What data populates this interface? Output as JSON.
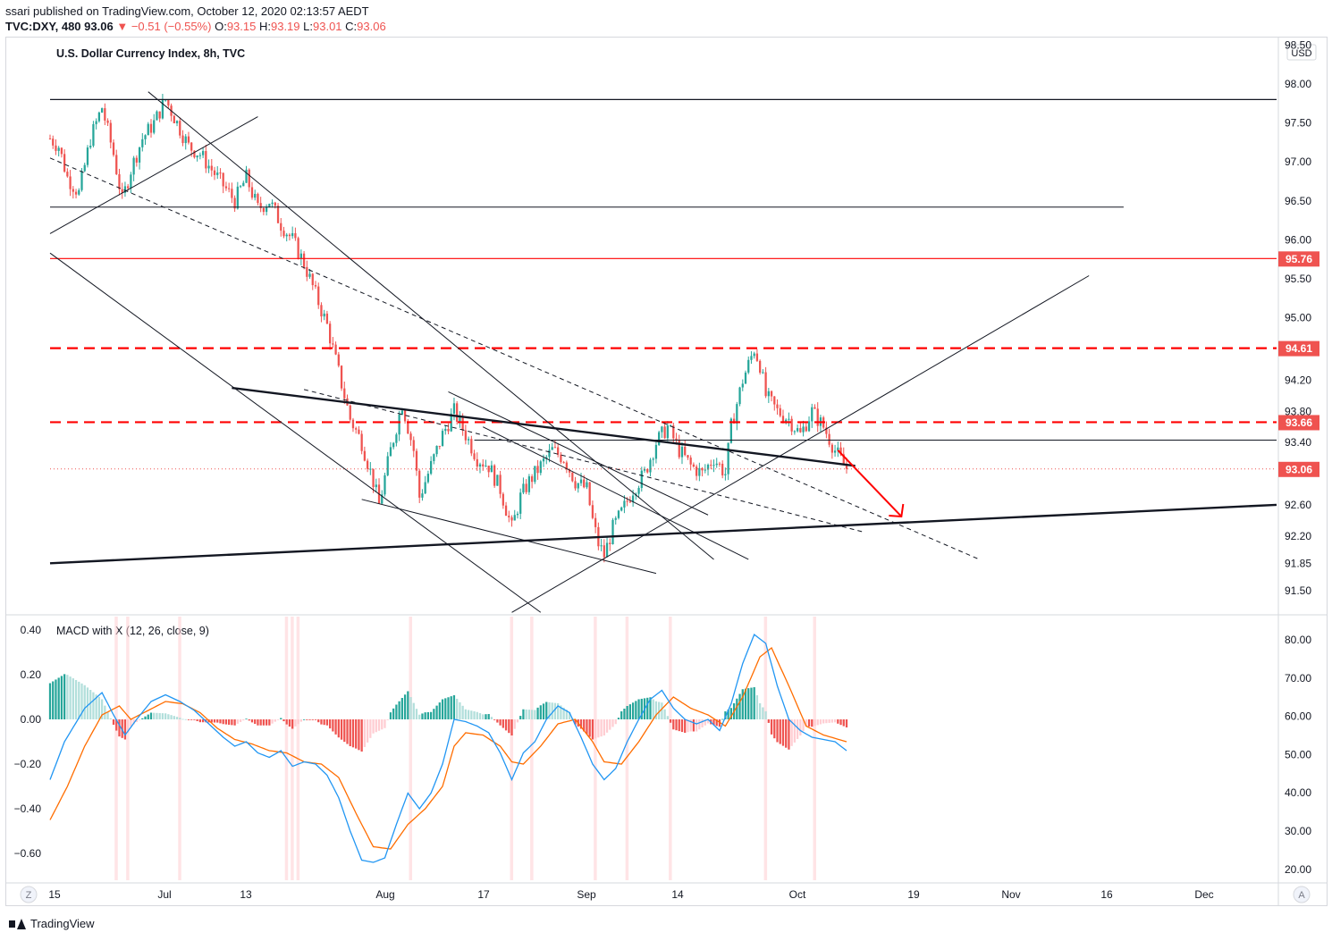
{
  "header": {
    "published": "ssari published on TradingView.com, October 12, 2020 02:13:57 AEDT",
    "symbol": "TVC:DXY, 480",
    "last": "93.06",
    "change": "▼ −0.51 (−0.55%)",
    "o_label": "O:",
    "o_val": "93.15",
    "h_label": "H:",
    "h_val": "93.19",
    "l_label": "L:",
    "l_val": "93.01",
    "c_label": "C:",
    "c_val": "93.06"
  },
  "footer": {
    "brand": "TradingView"
  },
  "colors": {
    "up": "#26a69a",
    "down": "#ef5350",
    "red": "#ff0000",
    "macd": "#2196f3",
    "signal": "#ff6d00"
  },
  "icons": {
    "zoom": "Z",
    "auto": "A"
  },
  "chart_data": [
    {
      "type": "candlestick",
      "title": "U.S. Dollar Currency Index, 8h, TVC",
      "currency": "USD",
      "ylim": [
        91.2,
        98.55
      ],
      "y_ticks": [
        "98.50",
        "98.00",
        "97.50",
        "97.00",
        "96.50",
        "96.00",
        "95.50",
        "95.00",
        "94.20",
        "93.80",
        "93.40",
        "92.60",
        "92.20",
        "91.85",
        "91.50"
      ],
      "x_ticks": [
        "15",
        "Jul",
        "13",
        "Aug",
        "17",
        "Sep",
        "14",
        "Oct",
        "19",
        "Nov",
        "16",
        "Dec"
      ],
      "price_labels": [
        "95.76",
        "94.61",
        "93.66",
        "93.06"
      ],
      "levels": [
        {
          "price": 97.8,
          "style": "solid"
        },
        {
          "price": 96.42,
          "style": "solid"
        },
        {
          "price": 95.76,
          "style": "red solid"
        },
        {
          "price": 94.61,
          "style": "red dashed"
        },
        {
          "price": 93.66,
          "style": "red dashed"
        },
        {
          "price": 93.43,
          "style": "solid"
        },
        {
          "price": 93.06,
          "style": "red dotted"
        }
      ],
      "path": [
        [
          0,
          97.3
        ],
        [
          3,
          97.2
        ],
        [
          6,
          96.8
        ],
        [
          10,
          96.6
        ],
        [
          14,
          97.3
        ],
        [
          18,
          97.7
        ],
        [
          22,
          97.1
        ],
        [
          25,
          96.5
        ],
        [
          28,
          96.9
        ],
        [
          32,
          97.3
        ],
        [
          36,
          97.5
        ],
        [
          40,
          97.8
        ],
        [
          44,
          97.5
        ],
        [
          48,
          97.2
        ],
        [
          52,
          97.1
        ],
        [
          56,
          96.9
        ],
        [
          60,
          96.7
        ],
        [
          64,
          96.5
        ],
        [
          68,
          96.8
        ],
        [
          72,
          96.4
        ],
        [
          76,
          96.5
        ],
        [
          80,
          96.2
        ],
        [
          84,
          96.0
        ],
        [
          88,
          95.7
        ],
        [
          92,
          95.3
        ],
        [
          96,
          94.9
        ],
        [
          100,
          94.3
        ],
        [
          104,
          93.7
        ],
        [
          108,
          93.4
        ],
        [
          112,
          92.9
        ],
        [
          114,
          92.6
        ],
        [
          118,
          93.3
        ],
        [
          122,
          93.9
        ],
        [
          126,
          93.3
        ],
        [
          128,
          92.7
        ],
        [
          132,
          93.1
        ],
        [
          136,
          93.5
        ],
        [
          140,
          93.8
        ],
        [
          144,
          93.5
        ],
        [
          148,
          93.2
        ],
        [
          152,
          93.1
        ],
        [
          156,
          92.8
        ],
        [
          160,
          92.3
        ],
        [
          163,
          92.7
        ],
        [
          166,
          92.9
        ],
        [
          170,
          93.1
        ],
        [
          174,
          93.3
        ],
        [
          178,
          93.2
        ],
        [
          182,
          92.9
        ],
        [
          186,
          92.8
        ],
        [
          188,
          92.4
        ],
        [
          190,
          92.1
        ],
        [
          192,
          91.95
        ],
        [
          195,
          92.3
        ],
        [
          198,
          92.5
        ],
        [
          202,
          92.8
        ],
        [
          206,
          93.0
        ],
        [
          210,
          93.4
        ],
        [
          214,
          93.6
        ],
        [
          218,
          93.3
        ],
        [
          222,
          93.1
        ],
        [
          226,
          93.0
        ],
        [
          230,
          93.2
        ],
        [
          234,
          93.0
        ],
        [
          236,
          93.6
        ],
        [
          238,
          93.9
        ],
        [
          240,
          94.2
        ],
        [
          242,
          94.4
        ],
        [
          244,
          94.6
        ],
        [
          246,
          94.4
        ],
        [
          248,
          94.0
        ],
        [
          252,
          93.8
        ],
        [
          256,
          93.7
        ],
        [
          260,
          93.5
        ],
        [
          264,
          93.8
        ],
        [
          268,
          93.6
        ],
        [
          272,
          93.3
        ],
        [
          276,
          93.06
        ]
      ],
      "trendlines": [
        {
          "name": "support-bottom",
          "from": [
            0,
            91.85
          ],
          "to": [
            425,
            92.6
          ],
          "style": "thick"
        },
        {
          "name": "wedge-top",
          "from": [
            63,
            94.1
          ],
          "to": [
            279,
            93.1
          ],
          "style": "thick"
        }
      ],
      "annotation": "red arrow pointing down to 92.45"
    },
    {
      "type": "line",
      "title": "MACD with X (12, 26, close, 9)",
      "ylim": [
        -0.72,
        0.46
      ],
      "y_ticks": [
        "0.40",
        "0.20",
        "0.00",
        "−0.20",
        "−0.40",
        "−0.60"
      ],
      "right_ticks": [
        "80.00",
        "70.00",
        "60.00",
        "50.00",
        "40.00",
        "30.00",
        "20.00"
      ],
      "macd": [
        [
          0,
          -0.27
        ],
        [
          5,
          -0.1
        ],
        [
          12,
          0.05
        ],
        [
          18,
          0.12
        ],
        [
          22,
          0.02
        ],
        [
          26,
          -0.07
        ],
        [
          30,
          0.0
        ],
        [
          35,
          0.08
        ],
        [
          40,
          0.11
        ],
        [
          45,
          0.08
        ],
        [
          50,
          0.04
        ],
        [
          55,
          -0.02
        ],
        [
          60,
          -0.08
        ],
        [
          64,
          -0.12
        ],
        [
          68,
          -0.1
        ],
        [
          72,
          -0.15
        ],
        [
          76,
          -0.17
        ],
        [
          80,
          -0.14
        ],
        [
          84,
          -0.21
        ],
        [
          88,
          -0.19
        ],
        [
          92,
          -0.2
        ],
        [
          96,
          -0.25
        ],
        [
          100,
          -0.35
        ],
        [
          104,
          -0.5
        ],
        [
          108,
          -0.63
        ],
        [
          112,
          -0.64
        ],
        [
          116,
          -0.62
        ],
        [
          120,
          -0.47
        ],
        [
          124,
          -0.33
        ],
        [
          128,
          -0.4
        ],
        [
          132,
          -0.33
        ],
        [
          136,
          -0.2
        ],
        [
          140,
          0.0
        ],
        [
          144,
          -0.01
        ],
        [
          148,
          -0.03
        ],
        [
          152,
          -0.06
        ],
        [
          156,
          -0.15
        ],
        [
          160,
          -0.27
        ],
        [
          164,
          -0.15
        ],
        [
          168,
          -0.1
        ],
        [
          172,
          0.0
        ],
        [
          176,
          0.06
        ],
        [
          180,
          0.03
        ],
        [
          184,
          -0.08
        ],
        [
          188,
          -0.2
        ],
        [
          192,
          -0.27
        ],
        [
          196,
          -0.22
        ],
        [
          200,
          -0.1
        ],
        [
          204,
          0.0
        ],
        [
          208,
          0.09
        ],
        [
          212,
          0.13
        ],
        [
          216,
          0.05
        ],
        [
          220,
          0.0
        ],
        [
          224,
          -0.02
        ],
        [
          228,
          0.0
        ],
        [
          232,
          -0.05
        ],
        [
          236,
          0.07
        ],
        [
          240,
          0.25
        ],
        [
          244,
          0.38
        ],
        [
          248,
          0.34
        ],
        [
          252,
          0.15
        ],
        [
          256,
          0.0
        ],
        [
          260,
          -0.05
        ],
        [
          264,
          -0.08
        ],
        [
          268,
          -0.09
        ],
        [
          272,
          -0.1
        ],
        [
          276,
          -0.14
        ]
      ],
      "signal": [
        [
          0,
          -0.45
        ],
        [
          6,
          -0.3
        ],
        [
          12,
          -0.12
        ],
        [
          18,
          0.02
        ],
        [
          24,
          0.06
        ],
        [
          28,
          0.0
        ],
        [
          34,
          0.04
        ],
        [
          40,
          0.08
        ],
        [
          46,
          0.07
        ],
        [
          52,
          0.03
        ],
        [
          58,
          -0.04
        ],
        [
          64,
          -0.09
        ],
        [
          70,
          -0.11
        ],
        [
          76,
          -0.14
        ],
        [
          82,
          -0.15
        ],
        [
          88,
          -0.19
        ],
        [
          94,
          -0.2
        ],
        [
          100,
          -0.26
        ],
        [
          106,
          -0.42
        ],
        [
          112,
          -0.57
        ],
        [
          118,
          -0.58
        ],
        [
          124,
          -0.47
        ],
        [
          130,
          -0.4
        ],
        [
          136,
          -0.3
        ],
        [
          140,
          -0.12
        ],
        [
          144,
          -0.06
        ],
        [
          150,
          -0.07
        ],
        [
          156,
          -0.12
        ],
        [
          160,
          -0.19
        ],
        [
          164,
          -0.2
        ],
        [
          170,
          -0.12
        ],
        [
          176,
          -0.02
        ],
        [
          182,
          0.0
        ],
        [
          188,
          -0.1
        ],
        [
          192,
          -0.19
        ],
        [
          198,
          -0.2
        ],
        [
          204,
          -0.1
        ],
        [
          210,
          0.02
        ],
        [
          216,
          0.1
        ],
        [
          222,
          0.05
        ],
        [
          228,
          0.02
        ],
        [
          234,
          -0.03
        ],
        [
          240,
          0.1
        ],
        [
          246,
          0.28
        ],
        [
          250,
          0.32
        ],
        [
          256,
          0.15
        ],
        [
          262,
          -0.03
        ],
        [
          268,
          -0.07
        ],
        [
          276,
          -0.1
        ]
      ]
    }
  ]
}
